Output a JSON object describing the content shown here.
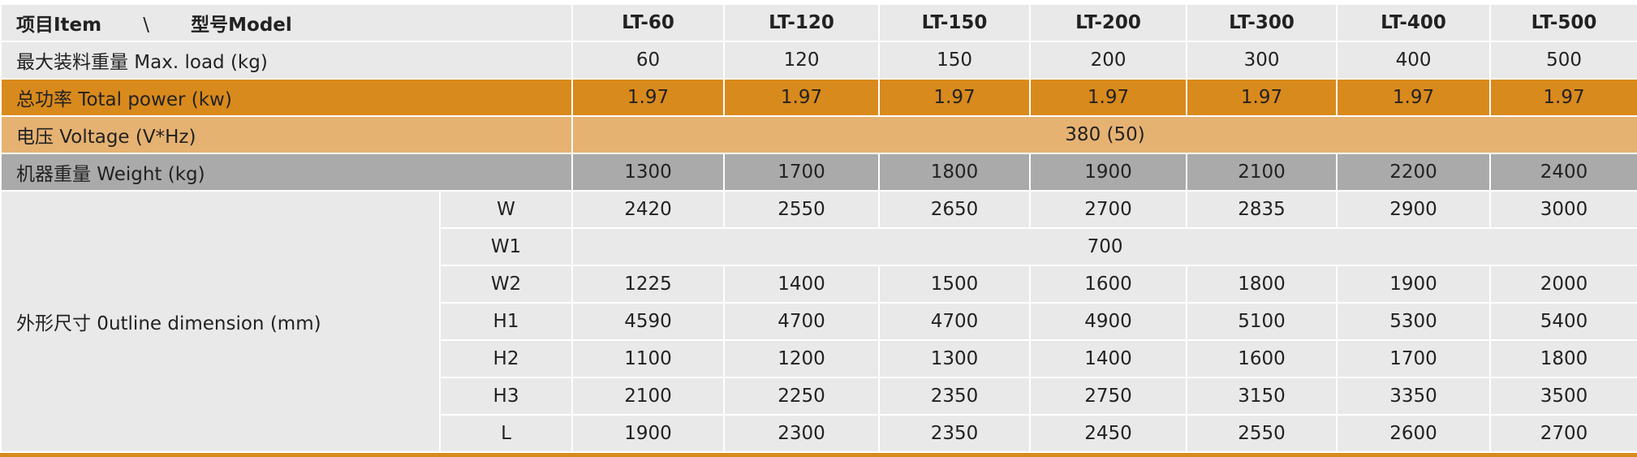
{
  "header": {
    "item": "项目Item",
    "separator": "\\",
    "model": "型号Model",
    "models": [
      "LT-60",
      "LT-120",
      "LT-150",
      "LT-200",
      "LT-300",
      "LT-400",
      "LT-500"
    ]
  },
  "rows": [
    {
      "label": "最大装料重量 Max. load (kg)",
      "values": [
        60,
        120,
        150,
        200,
        300,
        400,
        500
      ]
    },
    {
      "label": "总功率 Total power (kw)",
      "values": [
        1.97,
        1.97,
        1.97,
        1.97,
        1.97,
        1.97,
        1.97
      ]
    },
    {
      "label": "电压 Voltage (V*Hz)",
      "value": "380 (50)"
    },
    {
      "label": "机器重量 Weight (kg)",
      "values": [
        1300,
        1700,
        1800,
        1900,
        2100,
        2200,
        2400
      ]
    }
  ],
  "dimensions": {
    "label": "外形尺寸 0utline dimension (mm)",
    "rows": [
      {
        "name": "W",
        "values": [
          2420,
          2550,
          2650,
          2700,
          2835,
          2900,
          3000
        ]
      },
      {
        "name": "W1",
        "value": 700
      },
      {
        "name": "W2",
        "values": [
          1225,
          1400,
          1500,
          1600,
          1800,
          1900,
          2000
        ]
      },
      {
        "name": "H1",
        "values": [
          4590,
          4700,
          4700,
          4900,
          5100,
          5300,
          5400
        ]
      },
      {
        "name": "H2",
        "values": [
          1100,
          1200,
          1300,
          1400,
          1600,
          1700,
          1800
        ]
      },
      {
        "name": "H3",
        "values": [
          2100,
          2250,
          2350,
          2750,
          3150,
          3350,
          3500
        ]
      },
      {
        "name": "L",
        "values": [
          1900,
          2300,
          2350,
          2450,
          2550,
          2600,
          2700
        ]
      }
    ]
  }
}
